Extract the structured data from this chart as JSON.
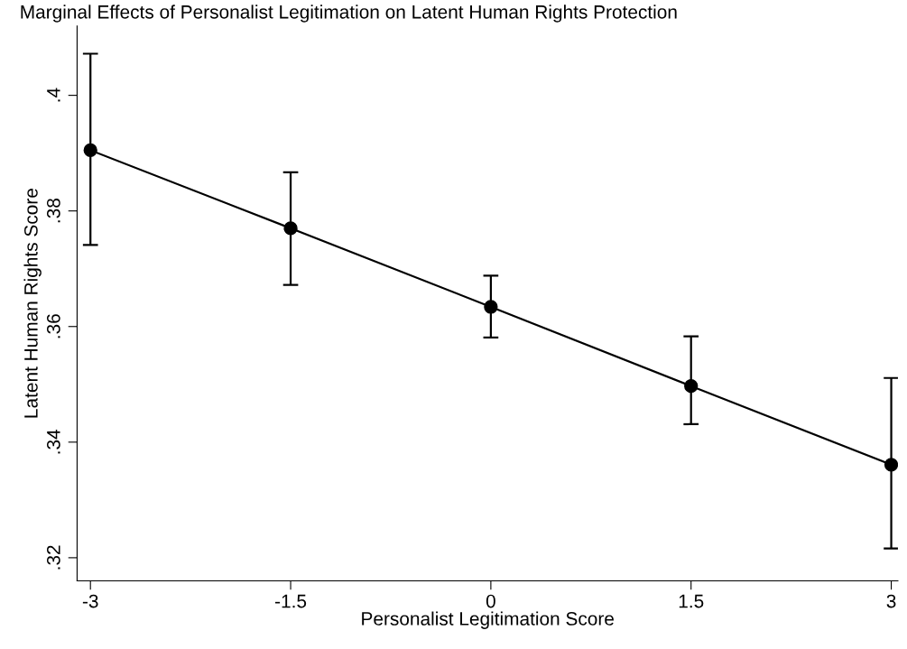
{
  "chart_data": {
    "type": "line",
    "title": "Marginal Effects of Personalist Legitimation on Latent Human Rights Protection",
    "xlabel": "Personalist Legitimation Score",
    "ylabel": "Latent Human Rights Score",
    "x": [
      -3,
      -1.5,
      0,
      1.5,
      3
    ],
    "series": [
      {
        "color": "#000000",
        "values": [
          0.3905,
          0.377,
          0.3634,
          0.3497,
          0.3361
        ],
        "errors": [
          [
            0.3741,
            0.4072
          ],
          [
            0.3672,
            0.3867
          ],
          [
            0.3581,
            0.3688
          ],
          [
            0.3431,
            0.3583
          ],
          [
            0.3216,
            0.3511
          ]
        ]
      }
    ],
    "xlim": [
      -3.1,
      3.05
    ],
    "xticks": [
      -3,
      -1.5,
      0,
      1.5,
      3
    ],
    "ylim": [
      0.316,
      0.412
    ],
    "yticks": [
      {
        "value": 0.32,
        "label": ".32"
      },
      {
        "value": 0.34,
        "label": ".34"
      },
      {
        "value": 0.36,
        "label": ".36"
      },
      {
        "value": 0.38,
        "label": ".38"
      },
      {
        "value": 0.4,
        "label": ".4"
      }
    ],
    "marker": "circle",
    "line_style": "solid",
    "grid": false,
    "legend": false
  }
}
